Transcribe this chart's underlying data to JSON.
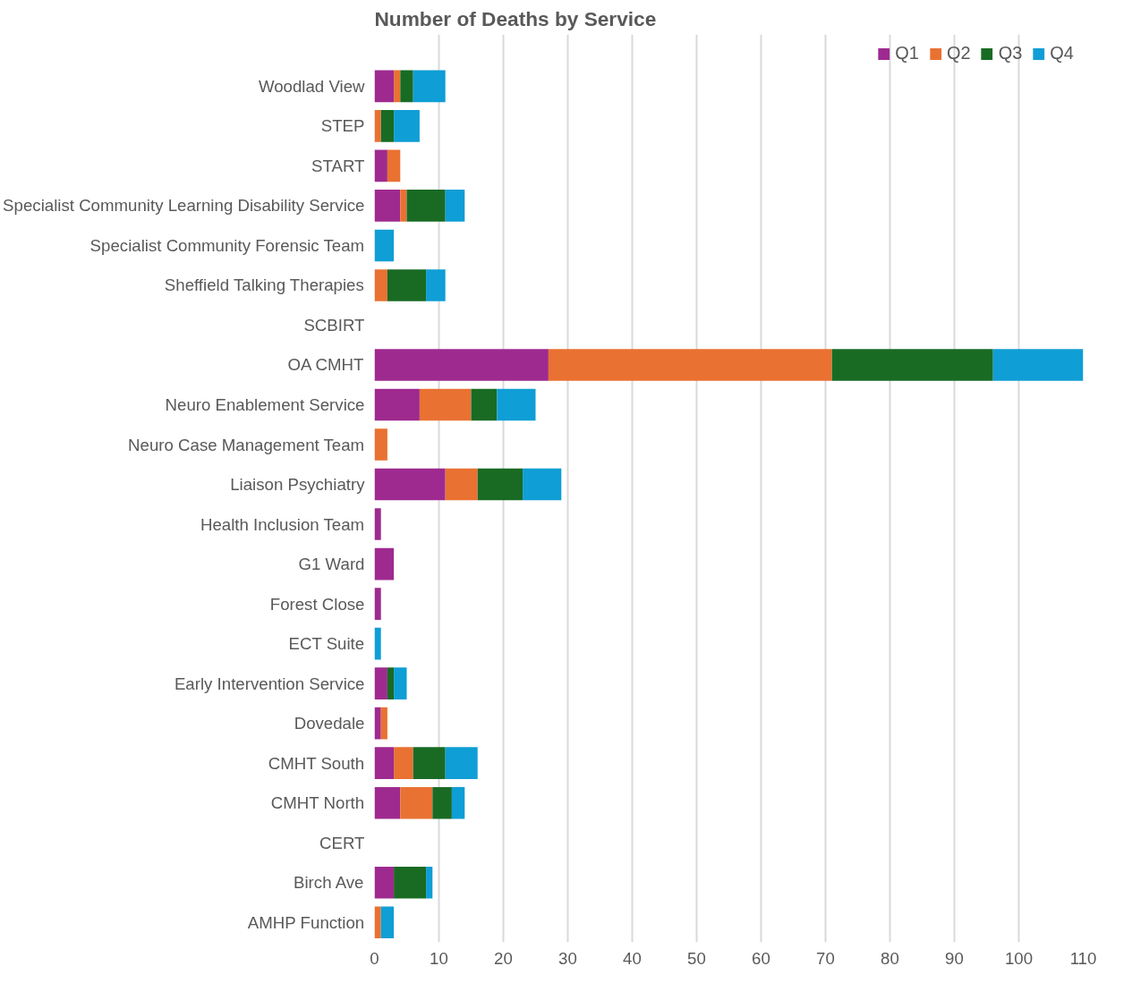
{
  "chart_data": {
    "type": "bar",
    "orientation": "horizontal",
    "stacked": true,
    "title": "Number of Deaths by Service",
    "categories": [
      "Woodlad View",
      "STEP",
      "START",
      "Specialist Community Learning Disability Service",
      "Specialist Community Forensic Team",
      "Sheffield Talking Therapies",
      "SCBIRT",
      "OA CMHT",
      "Neuro Enablement Service",
      "Neuro Case Management Team",
      "Liaison Psychiatry",
      "Health Inclusion Team",
      "G1 Ward",
      "Forest Close",
      "ECT Suite",
      "Early Intervention Service",
      "Dovedale",
      "CMHT South",
      "CMHT North",
      "CERT",
      "Birch Ave",
      "AMHP Function"
    ],
    "series": [
      {
        "name": "Q1",
        "color": "#9e2a8f",
        "values": [
          3,
          0,
          2,
          4,
          0,
          0,
          0,
          27,
          7,
          0,
          11,
          1,
          3,
          1,
          0,
          2,
          1,
          3,
          4,
          0,
          3,
          0
        ]
      },
      {
        "name": "Q2",
        "color": "#e97132",
        "values": [
          1,
          1,
          2,
          1,
          0,
          2,
          0,
          44,
          8,
          2,
          5,
          0,
          0,
          0,
          0,
          0,
          1,
          3,
          5,
          0,
          0,
          1
        ]
      },
      {
        "name": "Q3",
        "color": "#196b24",
        "values": [
          2,
          2,
          0,
          6,
          0,
          6,
          0,
          25,
          4,
          0,
          7,
          0,
          0,
          0,
          0,
          1,
          0,
          5,
          3,
          0,
          5,
          0
        ]
      },
      {
        "name": "Q4",
        "color": "#0f9ed5",
        "values": [
          5,
          4,
          0,
          3,
          3,
          3,
          0,
          14,
          6,
          0,
          6,
          0,
          0,
          0,
          1,
          2,
          0,
          5,
          2,
          0,
          1,
          2
        ]
      }
    ],
    "xlim": [
      0,
      110
    ],
    "xticks": [
      0,
      10,
      20,
      30,
      40,
      50,
      60,
      70,
      80,
      90,
      100,
      110
    ],
    "grid": "x",
    "legend": "top right"
  }
}
